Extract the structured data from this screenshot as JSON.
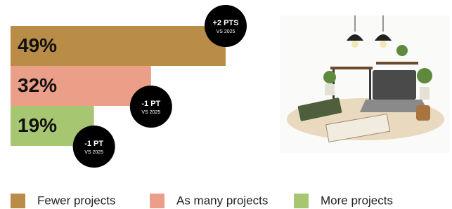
{
  "chart_data": {
    "type": "bar",
    "orientation": "horizontal",
    "series": [
      {
        "name": "Fewer projects",
        "color": "#b98d47",
        "values": [
          49
        ],
        "value_labels": [
          "49%"
        ],
        "change": "+2 PTS",
        "change_note": "VS 2025"
      },
      {
        "name": "As many projects",
        "color": "#eb9e88",
        "values": [
          32
        ],
        "value_labels": [
          "32%"
        ],
        "change": "-1 PT",
        "change_note": "VS 2025"
      },
      {
        "name": "More projects",
        "color": "#a7c672",
        "values": [
          19
        ],
        "value_labels": [
          "19%"
        ],
        "change": "-1 PT",
        "change_note": "VS 2025"
      }
    ]
  }
}
